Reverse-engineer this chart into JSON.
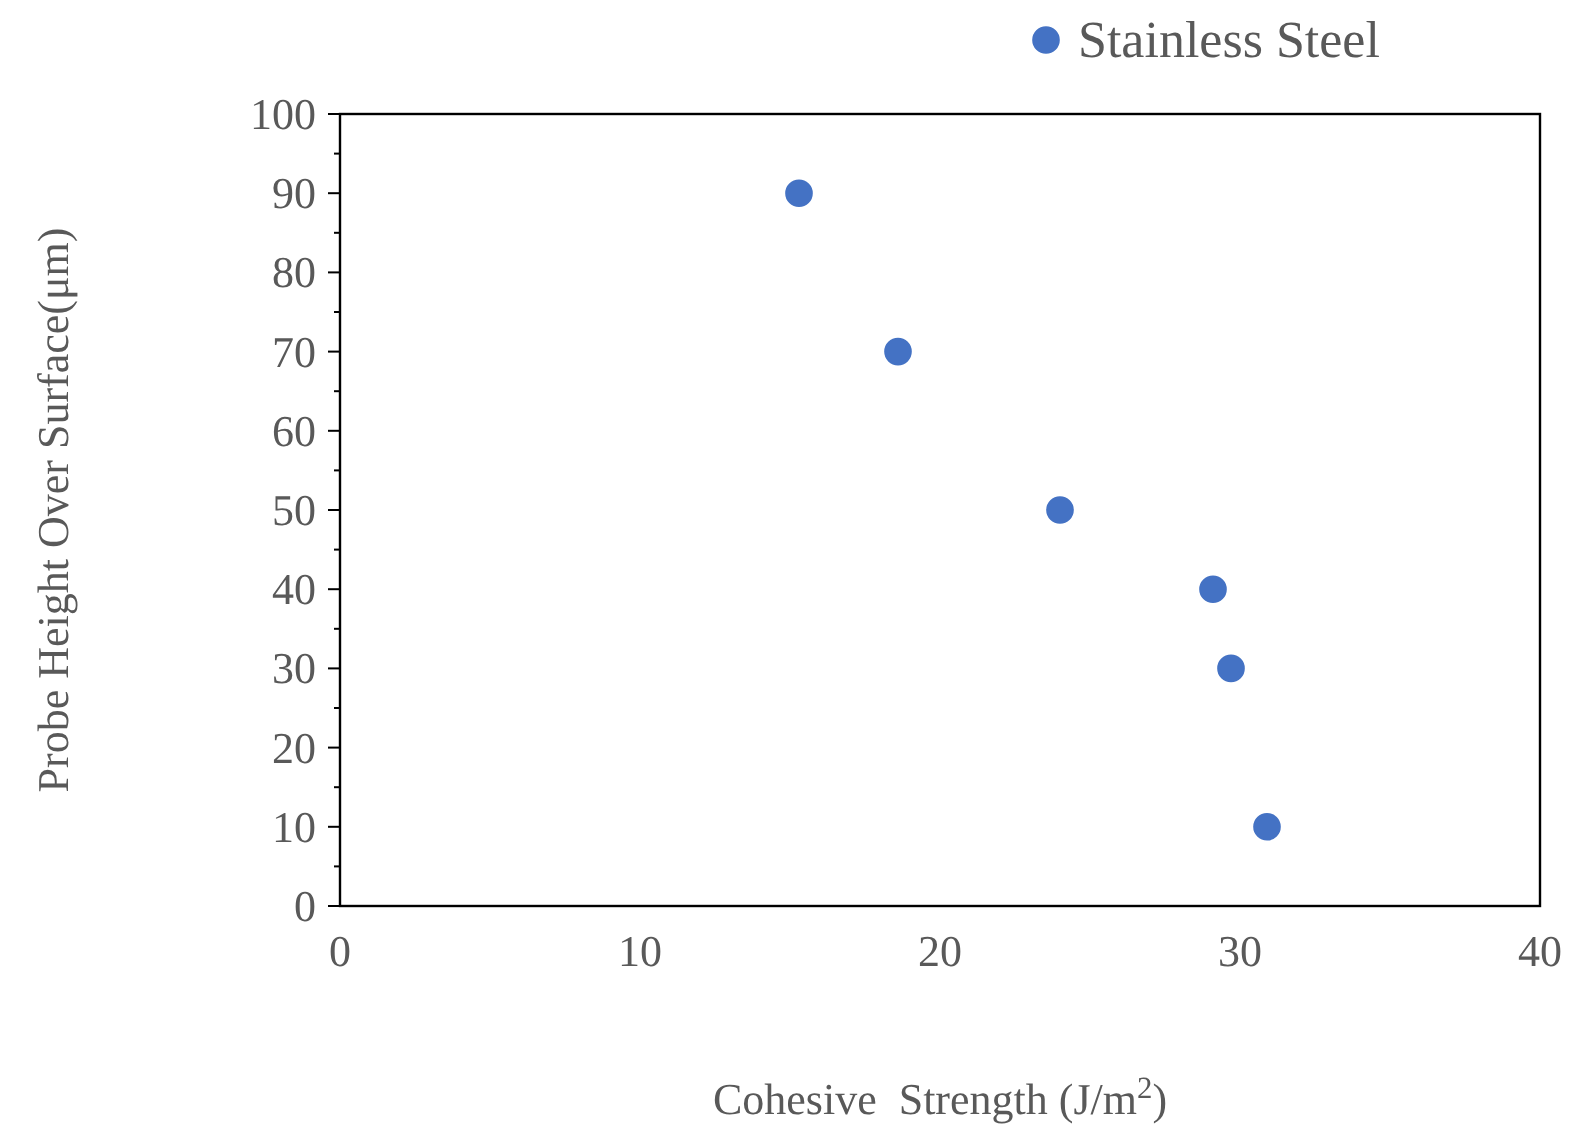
{
  "chart_data": {
    "type": "scatter",
    "xlabel": "Cohesive  Strength (J/m$^{2}$)",
    "ylabel": "Probe Height Over Surface(μm)",
    "x": [
      15.3,
      18.6,
      24.0,
      29.1,
      29.7,
      30.9
    ],
    "series": [
      {
        "name": "Stainless Steel",
        "color": "#4472c4",
        "values": [
          90,
          70,
          50,
          40,
          30,
          10
        ]
      }
    ],
    "xlim": [
      0,
      40
    ],
    "xticks": [
      0,
      10,
      20,
      30,
      40
    ],
    "ylim": [
      0,
      100
    ],
    "yticks": [
      0,
      10,
      20,
      30,
      40,
      50,
      60,
      70,
      80,
      90,
      100
    ],
    "legend": "top",
    "marker": "circle"
  }
}
